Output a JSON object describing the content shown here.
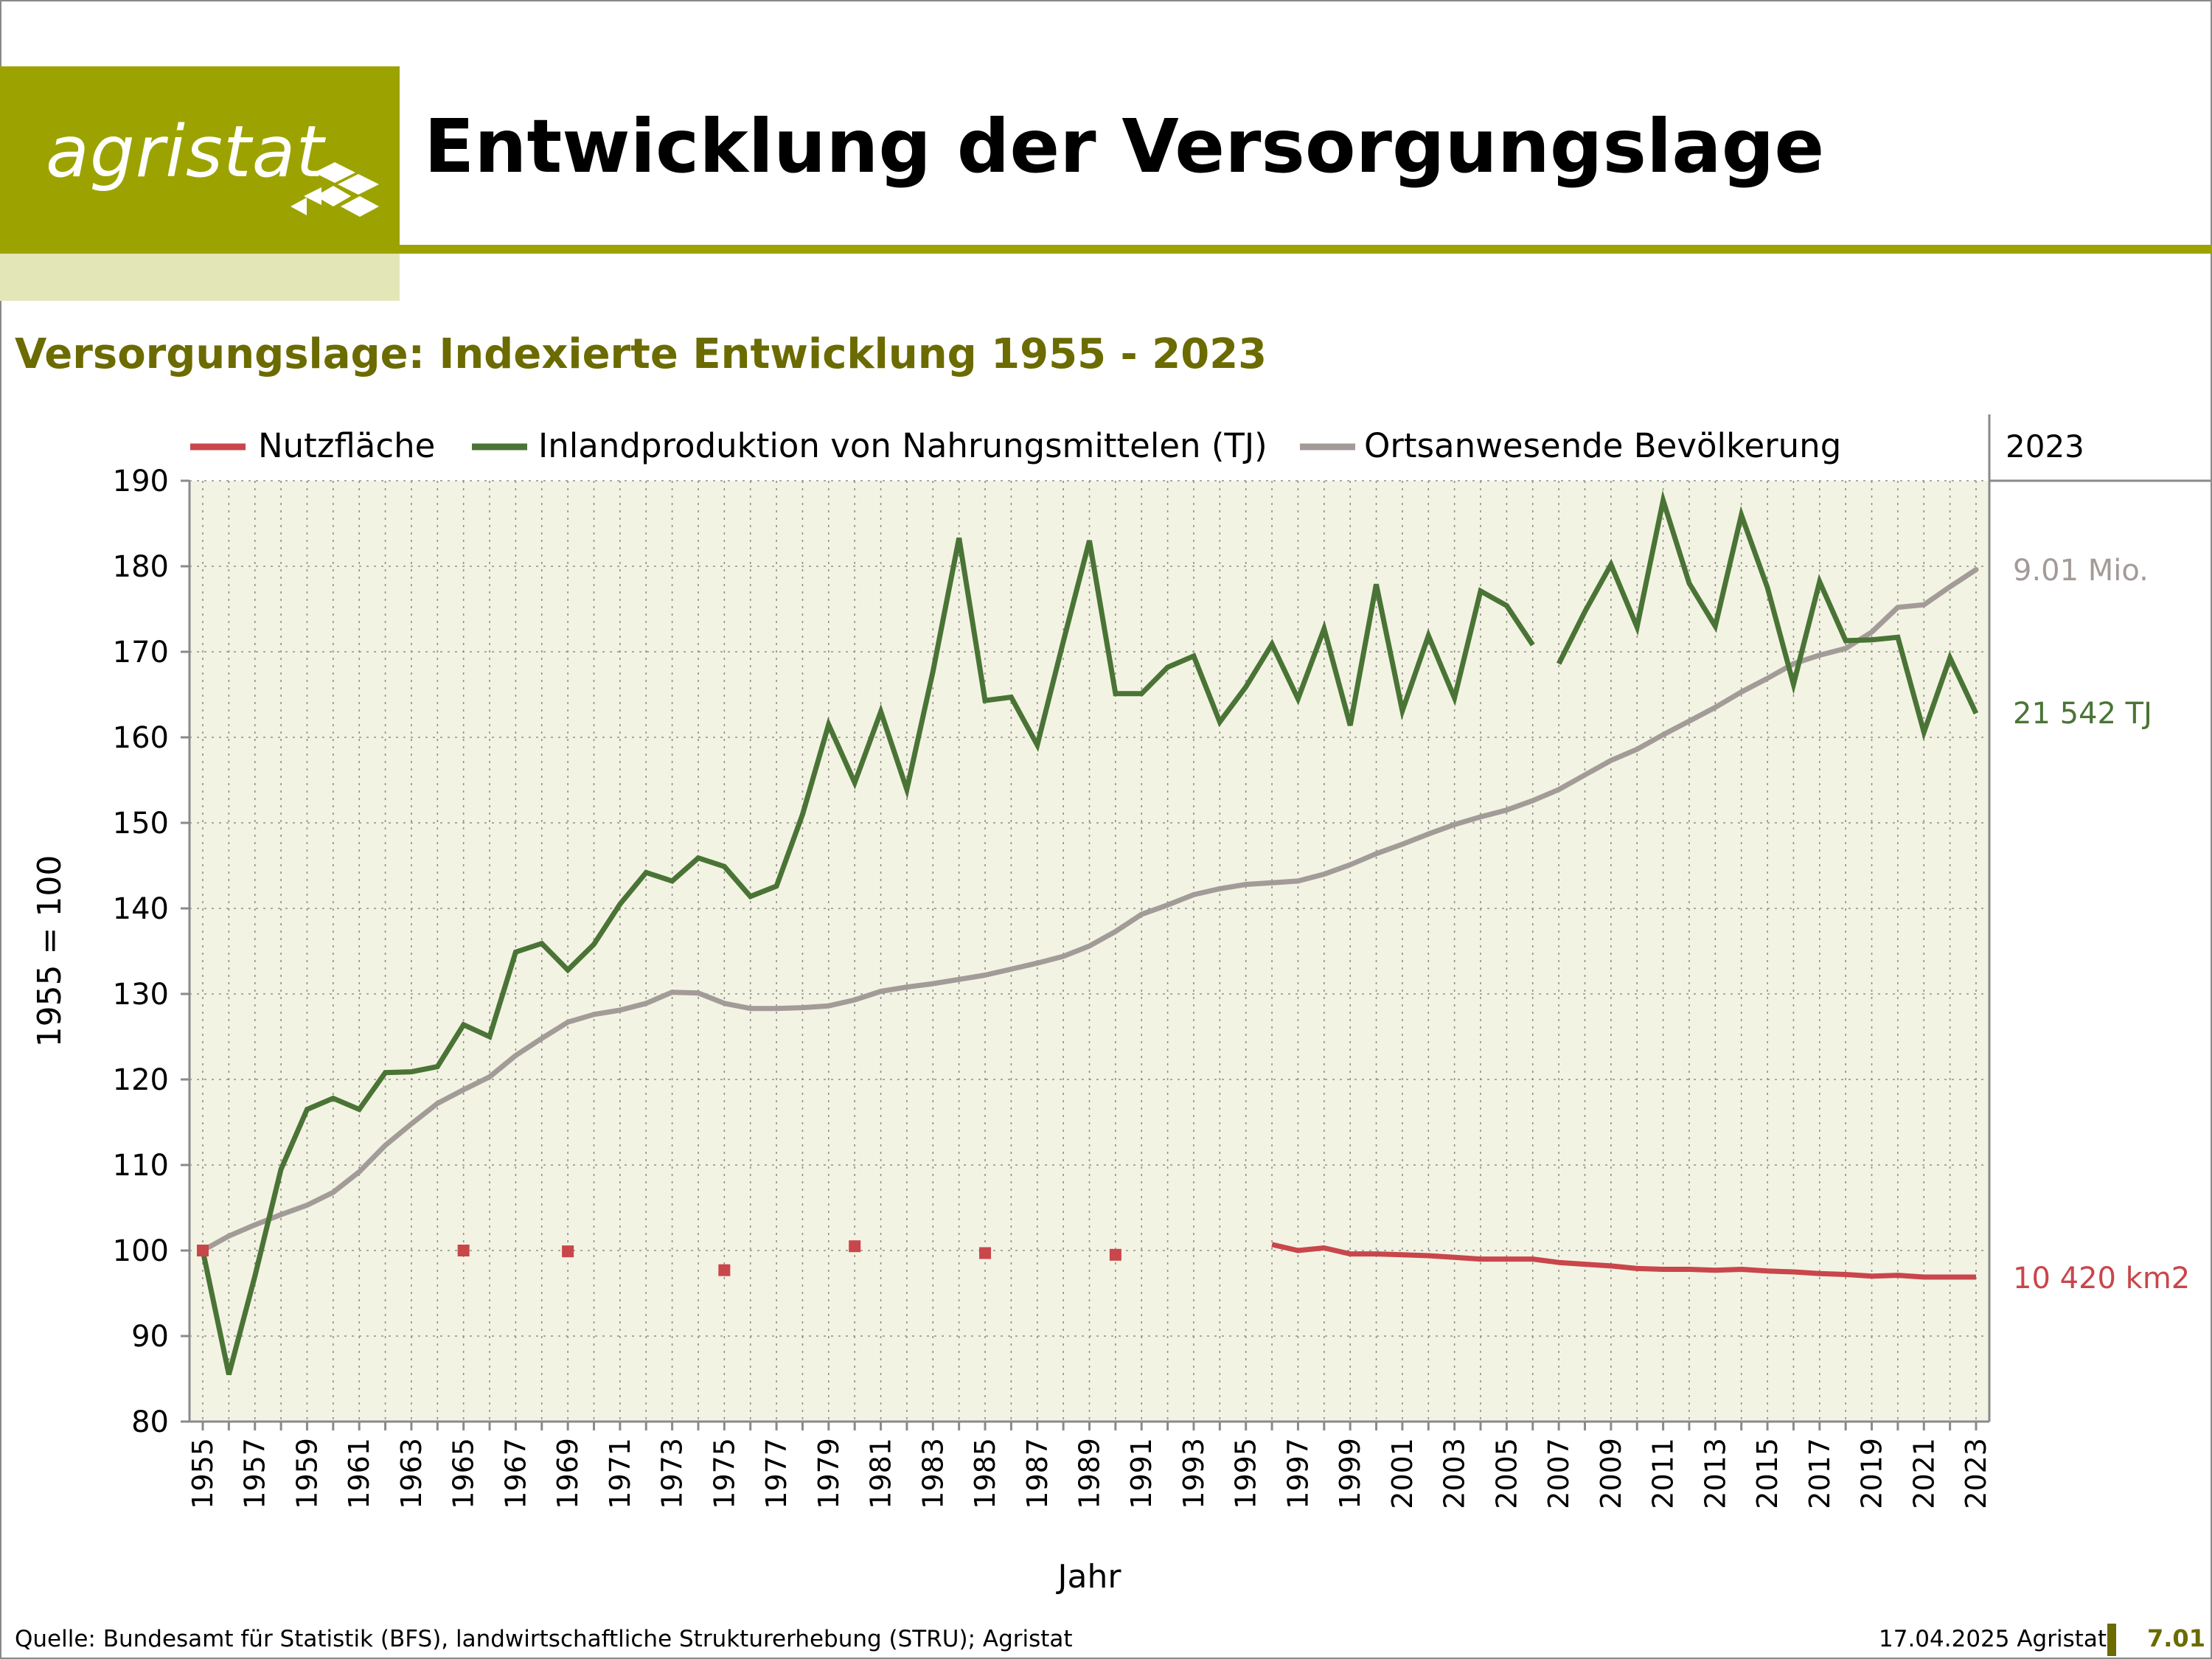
{
  "logo": {
    "text": "agristat"
  },
  "header": {
    "title": "Entwicklung der Versorgungslage"
  },
  "chart_title": "Versorgungslage: Indexierte Entwicklung 1955 - 2023",
  "footer": {
    "source": "Quelle: Bundesamt für Statistik (BFS), landwirtschaftliche Strukturerhebung (STRU); Agristat",
    "date": "17.04.2025 Agristat",
    "page": "7.01"
  },
  "colors": {
    "brand": "#9ca300",
    "brand_light": "#e3e7b8",
    "subtitle": "#6b6b00",
    "plot_bg": "#f3f3e3",
    "nutzflaeche": "#c9464b",
    "inlandproduktion": "#4a7436",
    "bevoelkerung": "#a39b98"
  },
  "chart_data": {
    "type": "line",
    "xlabel": "Jahr",
    "ylabel": "1955 = 100",
    "ylim": [
      80,
      190
    ],
    "yticks": [
      80,
      90,
      100,
      110,
      120,
      130,
      140,
      150,
      160,
      170,
      180,
      190
    ],
    "xlim": [
      1955,
      2023
    ],
    "xticks": [
      1955,
      1957,
      1959,
      1961,
      1963,
      1965,
      1967,
      1969,
      1971,
      1973,
      1975,
      1977,
      1979,
      1981,
      1983,
      1985,
      1987,
      1989,
      1991,
      1993,
      1995,
      1997,
      1999,
      2001,
      2003,
      2005,
      2007,
      2009,
      2011,
      2013,
      2015,
      2017,
      2019,
      2021,
      2023
    ],
    "grid": true,
    "legend_position": "top",
    "end_label_header": "2023",
    "series": [
      {
        "name": "Nutzfläche",
        "color_key": "nutzflaeche",
        "end_label": "10 420 km2",
        "markers": [
          [
            1955,
            100
          ],
          [
            1965,
            100
          ],
          [
            1969,
            99.9
          ],
          [
            1975,
            97.7
          ],
          [
            1980,
            100.5
          ],
          [
            1985,
            99.7
          ],
          [
            1990,
            99.5
          ]
        ],
        "points": [
          [
            1996,
            100.7
          ],
          [
            1997,
            100
          ],
          [
            1998,
            100.3
          ],
          [
            1999,
            99.6
          ],
          [
            2000,
            99.6
          ],
          [
            2001,
            99.5
          ],
          [
            2002,
            99.4
          ],
          [
            2003,
            99.2
          ],
          [
            2004,
            99
          ],
          [
            2005,
            99
          ],
          [
            2006,
            99
          ],
          [
            2007,
            98.6
          ],
          [
            2008,
            98.4
          ],
          [
            2009,
            98.2
          ],
          [
            2010,
            97.9
          ],
          [
            2011,
            97.8
          ],
          [
            2012,
            97.8
          ],
          [
            2013,
            97.7
          ],
          [
            2014,
            97.8
          ],
          [
            2015,
            97.6
          ],
          [
            2016,
            97.5
          ],
          [
            2017,
            97.3
          ],
          [
            2018,
            97.2
          ],
          [
            2019,
            97
          ],
          [
            2020,
            97.1
          ],
          [
            2021,
            96.9
          ],
          [
            2022,
            96.9
          ],
          [
            2023,
            96.9
          ]
        ]
      },
      {
        "name": "Inlandproduktion von Nahrungsmittelen (TJ)",
        "color_key": "inlandproduktion",
        "end_label": "21 542 TJ",
        "segments": [
          [
            [
              1955,
              100
            ],
            [
              1956,
              85.5
            ],
            [
              1957,
              97
            ],
            [
              1958,
              109.5
            ],
            [
              1959,
              116.5
            ],
            [
              1960,
              117.8
            ],
            [
              1961,
              116.5
            ],
            [
              1962,
              120.8
            ],
            [
              1963,
              120.9
            ],
            [
              1964,
              121.5
            ],
            [
              1965,
              126.4
            ],
            [
              1966,
              125
            ],
            [
              1967,
              134.9
            ],
            [
              1968,
              135.9
            ],
            [
              1969,
              132.8
            ],
            [
              1970,
              135.8
            ],
            [
              1971,
              140.5
            ],
            [
              1972,
              144.2
            ],
            [
              1973,
              143.2
            ],
            [
              1974,
              145.9
            ],
            [
              1975,
              144.9
            ],
            [
              1976,
              141.4
            ],
            [
              1977,
              142.6
            ],
            [
              1978,
              151
            ],
            [
              1979,
              161.5
            ],
            [
              1980,
              154.7
            ],
            [
              1981,
              163
            ],
            [
              1982,
              153.9
            ],
            [
              1983,
              167.7
            ],
            [
              1984,
              183.3
            ],
            [
              1985,
              164.3
            ],
            [
              1986,
              164.7
            ],
            [
              1987,
              159.1
            ],
            [
              1988,
              171.2
            ],
            [
              1989,
              183
            ],
            [
              1990,
              165.1
            ],
            [
              1991,
              165.1
            ],
            [
              1992,
              168.2
            ],
            [
              1993,
              169.5
            ],
            [
              1994,
              161.8
            ],
            [
              1995,
              165.9
            ],
            [
              1996,
              170.9
            ],
            [
              1997,
              164.5
            ],
            [
              1998,
              172.7
            ],
            [
              1999,
              161.4
            ],
            [
              2000,
              177.9
            ],
            [
              2001,
              163.1
            ],
            [
              2002,
              171.9
            ],
            [
              2003,
              164.6
            ],
            [
              2004,
              177.1
            ],
            [
              2005,
              175.4
            ],
            [
              2006,
              170.8
            ]
          ],
          [
            [
              2007,
              168.6
            ],
            [
              2008,
              174.7
            ],
            [
              2009,
              180.2
            ],
            [
              2010,
              172.9
            ],
            [
              2011,
              187.7
            ],
            [
              2012,
              178
            ],
            [
              2013,
              173
            ],
            [
              2014,
              186
            ],
            [
              2015,
              177.5
            ],
            [
              2016,
              166.2
            ],
            [
              2017,
              178.2
            ],
            [
              2018,
              171.3
            ],
            [
              2019,
              171.4
            ],
            [
              2020,
              171.7
            ],
            [
              2021,
              160.6
            ],
            [
              2022,
              169.3
            ],
            [
              2023,
              162.8
            ]
          ]
        ]
      },
      {
        "name": "Ortsanwesende Bevölkerung",
        "color_key": "bevoelkerung",
        "end_label": "9.01 Mio.",
        "points": [
          [
            1955,
            100
          ],
          [
            1956,
            101.7
          ],
          [
            1957,
            103
          ],
          [
            1958,
            104.2
          ],
          [
            1959,
            105.3
          ],
          [
            1960,
            106.8
          ],
          [
            1961,
            109.2
          ],
          [
            1962,
            112.3
          ],
          [
            1963,
            114.8
          ],
          [
            1964,
            117.2
          ],
          [
            1965,
            118.8
          ],
          [
            1966,
            120.3
          ],
          [
            1967,
            122.8
          ],
          [
            1968,
            124.8
          ],
          [
            1969,
            126.7
          ],
          [
            1970,
            127.6
          ],
          [
            1971,
            128.1
          ],
          [
            1972,
            128.9
          ],
          [
            1973,
            130.2
          ],
          [
            1974,
            130.1
          ],
          [
            1975,
            128.9
          ],
          [
            1976,
            128.3
          ],
          [
            1977,
            128.3
          ],
          [
            1978,
            128.4
          ],
          [
            1979,
            128.6
          ],
          [
            1980,
            129.3
          ],
          [
            1981,
            130.3
          ],
          [
            1982,
            130.8
          ],
          [
            1983,
            131.2
          ],
          [
            1984,
            131.7
          ],
          [
            1985,
            132.2
          ],
          [
            1986,
            132.9
          ],
          [
            1987,
            133.6
          ],
          [
            1988,
            134.4
          ],
          [
            1989,
            135.6
          ],
          [
            1990,
            137.3
          ],
          [
            1991,
            139.3
          ],
          [
            1992,
            140.4
          ],
          [
            1993,
            141.6
          ],
          [
            1994,
            142.3
          ],
          [
            1995,
            142.8
          ],
          [
            1996,
            143
          ],
          [
            1997,
            143.2
          ],
          [
            1998,
            144
          ],
          [
            1999,
            145.1
          ],
          [
            2000,
            146.4
          ],
          [
            2001,
            147.5
          ],
          [
            2002,
            148.7
          ],
          [
            2003,
            149.8
          ],
          [
            2004,
            150.7
          ],
          [
            2005,
            151.5
          ],
          [
            2006,
            152.6
          ],
          [
            2007,
            153.9
          ],
          [
            2008,
            155.6
          ],
          [
            2009,
            157.3
          ],
          [
            2010,
            158.6
          ],
          [
            2011,
            160.3
          ],
          [
            2012,
            161.9
          ],
          [
            2013,
            163.5
          ],
          [
            2014,
            165.3
          ],
          [
            2015,
            166.9
          ],
          [
            2016,
            168.6
          ],
          [
            2017,
            169.6
          ],
          [
            2018,
            170.4
          ],
          [
            2019,
            172.3
          ],
          [
            2020,
            175.2
          ],
          [
            2021,
            175.5
          ],
          [
            2022,
            177.6
          ],
          [
            2023,
            179.6
          ]
        ]
      }
    ]
  }
}
